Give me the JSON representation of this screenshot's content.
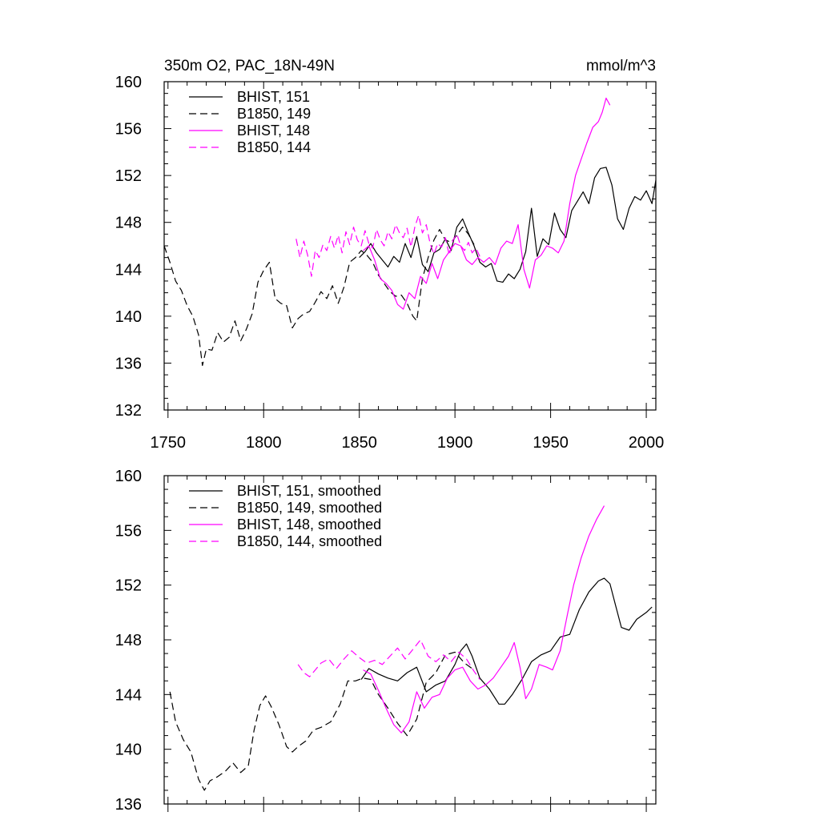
{
  "chart_data": [
    {
      "type": "line",
      "title": "350m O2, PAC_18N-49N",
      "units": "mmol/m^3",
      "xlim": [
        1748,
        2005
      ],
      "ylim": [
        132,
        160
      ],
      "xticks": [
        1750,
        1800,
        1850,
        1900,
        1950,
        2000
      ],
      "yticks": [
        132,
        136,
        140,
        144,
        148,
        152,
        156,
        160
      ],
      "grid": false,
      "legend_position": "top-left",
      "series": [
        {
          "name": "BHIST, 151",
          "color": "#000000",
          "dash": "solid",
          "x": [
            1850,
            1853,
            1856,
            1859,
            1862,
            1865,
            1868,
            1871,
            1874,
            1877,
            1880,
            1883,
            1886,
            1889,
            1892,
            1895,
            1898,
            1901,
            1904,
            1907,
            1910,
            1913,
            1916,
            1919,
            1922,
            1925,
            1928,
            1931,
            1934,
            1937,
            1940,
            1943,
            1946,
            1949,
            1952,
            1955,
            1958,
            1961,
            1964,
            1967,
            1970,
            1973,
            1976,
            1979,
            1982,
            1985,
            1988,
            1991,
            1994,
            1997,
            2000,
            2003,
            2005
          ],
          "y": [
            145.0,
            145.5,
            146.2,
            145.4,
            144.8,
            144.2,
            145.1,
            144.6,
            146.2,
            145.0,
            146.8,
            144.4,
            143.8,
            145.4,
            145.7,
            146.6,
            145.6,
            147.6,
            148.3,
            147.1,
            146.0,
            144.6,
            144.2,
            144.5,
            143.0,
            142.9,
            143.6,
            143.2,
            144.0,
            145.5,
            149.2,
            145.1,
            146.6,
            146.1,
            148.8,
            147.4,
            146.7,
            149.0,
            149.8,
            150.6,
            149.6,
            151.8,
            152.6,
            152.7,
            151.2,
            148.3,
            147.4,
            149.2,
            150.2,
            149.9,
            150.7,
            149.6,
            151.6
          ]
        },
        {
          "name": "B1850, 149",
          "color": "#000000",
          "dash": "dashed",
          "x": [
            1748,
            1751,
            1754,
            1757,
            1760,
            1763,
            1766,
            1768,
            1770,
            1773,
            1776,
            1779,
            1782,
            1785,
            1788,
            1791,
            1794,
            1797,
            1800,
            1803,
            1806,
            1809,
            1812,
            1815,
            1818,
            1821,
            1824,
            1827,
            1830,
            1833,
            1836,
            1839,
            1842,
            1845,
            1848,
            1851,
            1854,
            1857,
            1860,
            1863,
            1866,
            1869,
            1872,
            1875,
            1878,
            1880,
            1883,
            1886,
            1889,
            1892,
            1895,
            1898,
            1901,
            1904,
            1907,
            1910
          ],
          "y": [
            146.0,
            144.6,
            143.0,
            142.2,
            140.9,
            140.0,
            138.4,
            135.8,
            137.2,
            137.1,
            138.6,
            137.8,
            138.2,
            139.6,
            137.9,
            138.9,
            140.2,
            142.9,
            143.9,
            144.6,
            141.5,
            141.1,
            140.9,
            139.0,
            139.8,
            140.2,
            140.4,
            141.2,
            142.1,
            141.5,
            142.6,
            141.1,
            142.5,
            144.6,
            145.0,
            145.6,
            145.2,
            144.6,
            143.5,
            142.8,
            142.1,
            141.7,
            141.8,
            141.1,
            140.0,
            139.6,
            143.2,
            145.0,
            146.5,
            147.4,
            146.5,
            146.3,
            146.9,
            147.6,
            147.0,
            146.1
          ]
        },
        {
          "name": "BHIST, 148",
          "color": "#ff00ff",
          "dash": "solid",
          "x": [
            1852,
            1855,
            1858,
            1861,
            1864,
            1867,
            1870,
            1873,
            1876,
            1879,
            1882,
            1885,
            1888,
            1891,
            1894,
            1897,
            1900,
            1903,
            1906,
            1909,
            1912,
            1915,
            1918,
            1921,
            1924,
            1927,
            1930,
            1933,
            1936,
            1939,
            1942,
            1945,
            1948,
            1951,
            1954,
            1957,
            1960,
            1963,
            1966,
            1969,
            1972,
            1975,
            1977,
            1979,
            1981
          ],
          "y": [
            145.6,
            146.0,
            144.8,
            143.2,
            142.8,
            142.2,
            141.0,
            140.6,
            142.0,
            141.5,
            143.4,
            142.8,
            144.5,
            143.2,
            144.8,
            145.5,
            146.2,
            146.0,
            144.8,
            144.4,
            145.0,
            144.6,
            145.0,
            144.4,
            145.8,
            146.4,
            146.2,
            147.8,
            144.0,
            142.4,
            144.8,
            145.2,
            146.0,
            145.8,
            145.4,
            146.4,
            149.6,
            152.0,
            153.4,
            154.8,
            156.1,
            156.6,
            157.4,
            158.6,
            158.0
          ]
        },
        {
          "name": "B1850, 144",
          "color": "#ff00ff",
          "dash": "dashed",
          "x": [
            1817,
            1819,
            1821,
            1823,
            1825,
            1827,
            1829,
            1831,
            1833,
            1835,
            1837,
            1839,
            1841,
            1843,
            1845,
            1847,
            1849,
            1851,
            1853,
            1855,
            1857,
            1859,
            1861,
            1863,
            1865,
            1867,
            1869,
            1871,
            1873,
            1875,
            1877,
            1879,
            1881,
            1883,
            1885,
            1887,
            1889,
            1891,
            1893,
            1895,
            1897,
            1899,
            1901,
            1903,
            1905,
            1907,
            1909,
            1911,
            1913
          ],
          "y": [
            146.6,
            145.0,
            146.4,
            145.2,
            143.4,
            145.6,
            145.0,
            146.1,
            145.6,
            146.8,
            145.8,
            146.9,
            145.4,
            147.2,
            146.1,
            147.6,
            146.5,
            146.0,
            147.3,
            146.2,
            145.8,
            147.4,
            146.5,
            146.0,
            147.2,
            146.6,
            147.8,
            147.1,
            146.7,
            147.5,
            145.9,
            147.6,
            148.6,
            147.1,
            147.8,
            146.2,
            145.3,
            146.2,
            145.9,
            146.7,
            145.2,
            146.5,
            147.0,
            146.0,
            145.6,
            146.3,
            145.4,
            145.8,
            145.1
          ]
        }
      ]
    },
    {
      "type": "line",
      "title": "",
      "xlim": [
        1748,
        2005
      ],
      "ylim": [
        136,
        160
      ],
      "yticks": [
        136,
        140,
        144,
        148,
        152,
        156,
        160
      ],
      "grid": false,
      "legend_position": "top-left",
      "series": [
        {
          "name": "BHIST, 151, smoothed",
          "color": "#000000",
          "dash": "solid",
          "x": [
            1851,
            1855,
            1860,
            1865,
            1870,
            1875,
            1880,
            1885,
            1890,
            1895,
            1900,
            1903,
            1906,
            1909,
            1913,
            1918,
            1923,
            1926,
            1930,
            1935,
            1940,
            1945,
            1950,
            1955,
            1960,
            1965,
            1970,
            1975,
            1978,
            1981,
            1984,
            1987,
            1991,
            1995,
            2000,
            2003
          ],
          "y": [
            145.1,
            145.9,
            145.5,
            145.2,
            145.0,
            145.6,
            146.0,
            144.2,
            144.7,
            145.0,
            146.2,
            147.2,
            147.7,
            146.8,
            145.2,
            144.4,
            143.3,
            143.3,
            144.0,
            145.1,
            146.4,
            146.9,
            147.2,
            148.2,
            148.4,
            150.2,
            151.5,
            152.3,
            152.5,
            152.1,
            150.5,
            148.9,
            148.7,
            149.5,
            150.0,
            150.4
          ]
        },
        {
          "name": "B1850, 149, smoothed",
          "color": "#000000",
          "dash": "dashed",
          "x": [
            1751,
            1754,
            1758,
            1762,
            1766,
            1769,
            1772,
            1776,
            1780,
            1784,
            1788,
            1792,
            1795,
            1798,
            1801,
            1804,
            1808,
            1812,
            1815,
            1818,
            1822,
            1826,
            1830,
            1835,
            1840,
            1844,
            1848,
            1852,
            1856,
            1860,
            1865,
            1870,
            1875,
            1880,
            1885,
            1890,
            1895,
            1900,
            1905,
            1910
          ],
          "y": [
            144.2,
            142.0,
            140.7,
            139.8,
            137.8,
            137.0,
            137.7,
            138.0,
            138.4,
            139.0,
            138.3,
            138.8,
            141.4,
            143.2,
            143.9,
            143.1,
            141.8,
            140.2,
            139.8,
            140.2,
            140.6,
            141.4,
            141.6,
            142.0,
            143.3,
            145.0,
            145.0,
            145.2,
            145.1,
            144.0,
            143.0,
            141.9,
            141.0,
            142.2,
            144.9,
            145.6,
            146.9,
            147.1,
            146.3,
            145.8
          ]
        },
        {
          "name": "BHIST, 148, smoothed",
          "color": "#ff00ff",
          "dash": "solid",
          "x": [
            1852,
            1856,
            1860,
            1864,
            1868,
            1872,
            1876,
            1880,
            1884,
            1888,
            1892,
            1896,
            1900,
            1904,
            1908,
            1912,
            1916,
            1920,
            1924,
            1928,
            1931,
            1934,
            1937,
            1940,
            1944,
            1948,
            1951,
            1955,
            1959,
            1962,
            1966,
            1970,
            1974,
            1978
          ],
          "y": [
            145.8,
            145.5,
            144.3,
            143.0,
            141.8,
            141.2,
            142.0,
            144.2,
            143.0,
            143.8,
            144.0,
            145.2,
            145.8,
            146.0,
            145.0,
            144.4,
            144.7,
            145.2,
            146.0,
            146.8,
            147.8,
            146.0,
            143.7,
            144.4,
            146.2,
            146.0,
            145.8,
            147.2,
            150.0,
            152.0,
            154.0,
            155.6,
            156.8,
            157.8
          ]
        },
        {
          "name": "B1850, 144, smoothed",
          "color": "#ff00ff",
          "dash": "dashed",
          "x": [
            1818,
            1821,
            1824,
            1827,
            1830,
            1834,
            1838,
            1842,
            1846,
            1850,
            1854,
            1858,
            1862,
            1866,
            1870,
            1874,
            1878,
            1882,
            1886,
            1890,
            1894,
            1898,
            1902,
            1906,
            1910,
            1913
          ],
          "y": [
            146.2,
            145.6,
            145.3,
            145.8,
            146.3,
            146.6,
            145.9,
            146.6,
            147.2,
            146.7,
            146.3,
            146.5,
            146.2,
            146.8,
            147.4,
            146.6,
            147.3,
            148.0,
            146.8,
            146.4,
            146.9,
            146.4,
            147.1,
            146.6,
            145.7,
            145.1
          ]
        }
      ]
    }
  ]
}
